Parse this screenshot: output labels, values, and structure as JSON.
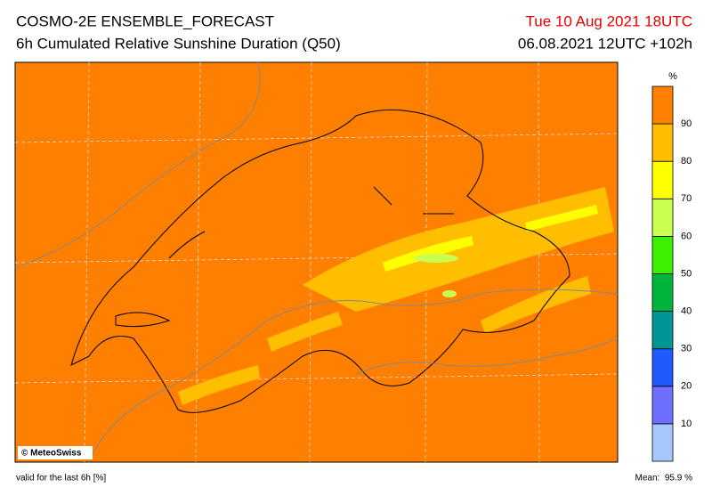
{
  "header": {
    "title": "COSMO-2E ENSEMBLE_FORECAST",
    "subtitle": "6h Cumulated Relative Sunshine Duration (Q50)",
    "valid_time": "Tue 10 Aug 2021 18UTC",
    "run": "06.08.2021 12UTC +102h"
  },
  "map": {
    "credit": "© MeteoSwiss"
  },
  "colorbar": {
    "unit": "%",
    "levels": [
      10,
      20,
      30,
      40,
      50,
      60,
      70,
      80,
      90
    ],
    "colors": [
      "#a6c8ff",
      "#6e6eff",
      "#1e5aff",
      "#009696",
      "#00b43c",
      "#3cf000",
      "#c8ff50",
      "#ffff00",
      "#ffbe00",
      "#ff7f00"
    ]
  },
  "footer": {
    "note": "valid for the last 6h [%]",
    "mean": "Mean:  95.9 %"
  }
}
